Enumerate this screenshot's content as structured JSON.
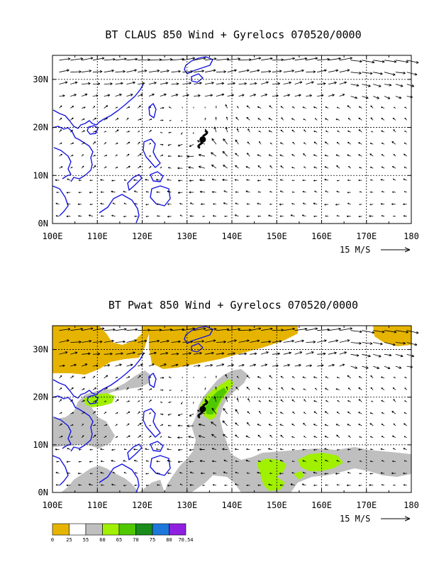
{
  "panels": [
    {
      "title": "BT CLAUS 850 Wind + Gyrelocs 070520/0000",
      "shaded": false,
      "legend": false
    },
    {
      "title": "BT Pwat 850 Wind + Gyrelocs 070520/0000",
      "shaded": true,
      "legend": true
    }
  ],
  "axes": {
    "lon_range": [
      100,
      180
    ],
    "lat_range": [
      0,
      35
    ],
    "x_ticks": [
      "100E",
      "110E",
      "120E",
      "130E",
      "140E",
      "150E",
      "160E",
      "170E",
      "180"
    ],
    "x_values": [
      100,
      110,
      120,
      130,
      140,
      150,
      160,
      170,
      180
    ],
    "y_ticks": [
      "0N",
      "10N",
      "20N",
      "30N"
    ],
    "y_values": [
      0,
      10,
      20,
      30
    ],
    "grid": true
  },
  "vector_scale": {
    "label": "15 M/S",
    "speed": 15
  },
  "gyre_marker": {
    "name": "tropical-cyclone-symbol",
    "lon": 133.5,
    "lat": 17.5
  },
  "legend": {
    "labels": [
      "0",
      "25",
      "55",
      "60",
      "65",
      "70",
      "75",
      "80",
      "70.54"
    ],
    "colors": [
      "#e6b400",
      "#ffffff",
      "#bfbfbf",
      "#a0f000",
      "#50c800",
      "#1a8c1a",
      "#1e78dc",
      "#9020e0"
    ]
  },
  "colors": {
    "coast": "#1515e0",
    "dry": "#e6b400",
    "moist": "#bfbfbf",
    "wet": "#a0f000",
    "very_wet": "#50c800"
  }
}
